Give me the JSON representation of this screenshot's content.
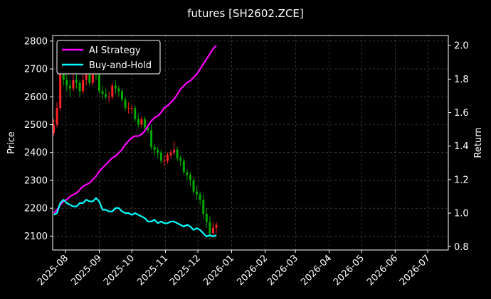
{
  "chart_data": {
    "type": "line",
    "title": "futures [SH2602.ZCE]",
    "xlabel": "",
    "ylabel": "Price",
    "y2label": "Return",
    "ylim": [
      2050,
      2820
    ],
    "y2lim": [
      0.78,
      2.06
    ],
    "yticks": [
      2100,
      2200,
      2300,
      2400,
      2500,
      2600,
      2700,
      2800
    ],
    "y2ticks": [
      0.8,
      1.0,
      1.2,
      1.4,
      1.6,
      1.8,
      2.0
    ],
    "xlim": [
      "2025-07-20",
      "2026-07-20"
    ],
    "xticks": [
      "2025-08",
      "2025-09",
      "2025-10",
      "2025-11",
      "2025-12",
      "2026-01",
      "2026-02",
      "2026-03",
      "2026-04",
      "2026-05",
      "2026-06",
      "2026-07"
    ],
    "grid": true,
    "legend": "top-left",
    "colors": {
      "background": "#000000",
      "ai_strategy": "#ff00ff",
      "buy_and_hold": "#00ffff",
      "candle_up": "#ff2222",
      "candle_down": "#00aa00",
      "grid": "#555555"
    },
    "series": [
      {
        "name": "AI Strategy",
        "axis": "right",
        "x": [
          "2025-07-21",
          "2025-07-24",
          "2025-07-27",
          "2025-07-30",
          "2025-08-02",
          "2025-08-05",
          "2025-08-08",
          "2025-08-11",
          "2025-08-14",
          "2025-08-17",
          "2025-08-20",
          "2025-08-23",
          "2025-08-26",
          "2025-08-29",
          "2025-09-01",
          "2025-09-04",
          "2025-09-07",
          "2025-09-10",
          "2025-09-13",
          "2025-09-16",
          "2025-09-19",
          "2025-09-22",
          "2025-09-25",
          "2025-09-28",
          "2025-10-01",
          "2025-10-04",
          "2025-10-07",
          "2025-10-10",
          "2025-10-13",
          "2025-10-16",
          "2025-10-19",
          "2025-10-22",
          "2025-10-25",
          "2025-10-28",
          "2025-10-31",
          "2025-11-03",
          "2025-11-06",
          "2025-11-09",
          "2025-11-12",
          "2025-11-15",
          "2025-11-18",
          "2025-11-21",
          "2025-11-24",
          "2025-11-27",
          "2025-11-30",
          "2025-12-03",
          "2025-12-06",
          "2025-12-09",
          "2025-12-12",
          "2025-12-15",
          "2025-12-18"
        ],
        "values": [
          1.0,
          1.02,
          1.05,
          1.07,
          1.08,
          1.1,
          1.11,
          1.12,
          1.14,
          1.16,
          1.17,
          1.18,
          1.2,
          1.22,
          1.25,
          1.27,
          1.29,
          1.31,
          1.33,
          1.34,
          1.36,
          1.38,
          1.41,
          1.43,
          1.45,
          1.46,
          1.46,
          1.47,
          1.49,
          1.52,
          1.55,
          1.57,
          1.58,
          1.6,
          1.63,
          1.64,
          1.66,
          1.68,
          1.71,
          1.74,
          1.76,
          1.78,
          1.79,
          1.81,
          1.83,
          1.86,
          1.89,
          1.92,
          1.95,
          1.98,
          2.0
        ]
      },
      {
        "name": "Buy-and-Hold",
        "axis": "right",
        "x": [
          "2025-07-21",
          "2025-07-24",
          "2025-07-27",
          "2025-07-30",
          "2025-08-02",
          "2025-08-05",
          "2025-08-08",
          "2025-08-11",
          "2025-08-14",
          "2025-08-17",
          "2025-08-20",
          "2025-08-23",
          "2025-08-26",
          "2025-08-29",
          "2025-09-01",
          "2025-09-04",
          "2025-09-07",
          "2025-09-10",
          "2025-09-13",
          "2025-09-16",
          "2025-09-19",
          "2025-09-22",
          "2025-09-25",
          "2025-09-28",
          "2025-10-01",
          "2025-10-04",
          "2025-10-07",
          "2025-10-10",
          "2025-10-13",
          "2025-10-16",
          "2025-10-19",
          "2025-10-22",
          "2025-10-25",
          "2025-10-28",
          "2025-10-31",
          "2025-11-03",
          "2025-11-06",
          "2025-11-09",
          "2025-11-12",
          "2025-11-15",
          "2025-11-18",
          "2025-11-21",
          "2025-11-24",
          "2025-11-27",
          "2025-11-30",
          "2025-12-03",
          "2025-12-06",
          "2025-12-09",
          "2025-12-12",
          "2025-12-15",
          "2025-12-18"
        ],
        "values": [
          0.99,
          1.0,
          1.06,
          1.08,
          1.06,
          1.05,
          1.04,
          1.04,
          1.06,
          1.06,
          1.08,
          1.07,
          1.07,
          1.09,
          1.07,
          1.02,
          1.02,
          1.01,
          1.01,
          1.03,
          1.03,
          1.01,
          1.0,
          1.0,
          0.99,
          1.0,
          0.99,
          0.98,
          0.97,
          0.95,
          0.95,
          0.96,
          0.94,
          0.95,
          0.94,
          0.94,
          0.95,
          0.95,
          0.94,
          0.93,
          0.92,
          0.93,
          0.92,
          0.9,
          0.91,
          0.9,
          0.88,
          0.86,
          0.87,
          0.86,
          0.87
        ]
      }
    ],
    "candles": {
      "axis": "left",
      "x": [
        "2025-07-21",
        "2025-07-24",
        "2025-07-27",
        "2025-07-30",
        "2025-08-02",
        "2025-08-05",
        "2025-08-08",
        "2025-08-11",
        "2025-08-14",
        "2025-08-17",
        "2025-08-20",
        "2025-08-23",
        "2025-08-26",
        "2025-08-29",
        "2025-09-01",
        "2025-09-04",
        "2025-09-07",
        "2025-09-10",
        "2025-09-13",
        "2025-09-16",
        "2025-09-19",
        "2025-09-22",
        "2025-09-25",
        "2025-09-28",
        "2025-10-01",
        "2025-10-04",
        "2025-10-07",
        "2025-10-10",
        "2025-10-13",
        "2025-10-16",
        "2025-10-19",
        "2025-10-22",
        "2025-10-25",
        "2025-10-28",
        "2025-10-31",
        "2025-11-03",
        "2025-11-06",
        "2025-11-09",
        "2025-11-12",
        "2025-11-15",
        "2025-11-18",
        "2025-11-21",
        "2025-11-24",
        "2025-11-27",
        "2025-11-30",
        "2025-12-03",
        "2025-12-06",
        "2025-12-09",
        "2025-12-12",
        "2025-12-15",
        "2025-12-18"
      ],
      "open": [
        2470,
        2500,
        2560,
        2690,
        2660,
        2640,
        2630,
        2660,
        2650,
        2620,
        2660,
        2680,
        2650,
        2700,
        2680,
        2620,
        2610,
        2600,
        2600,
        2640,
        2630,
        2620,
        2590,
        2560,
        2560,
        2560,
        2520,
        2500,
        2520,
        2490,
        2480,
        2420,
        2410,
        2400,
        2370,
        2370,
        2390,
        2400,
        2410,
        2380,
        2370,
        2330,
        2320,
        2300,
        2260,
        2250,
        2230,
        2180,
        2150,
        2110,
        2130
      ],
      "close": [
        2500,
        2560,
        2690,
        2660,
        2640,
        2630,
        2660,
        2650,
        2620,
        2660,
        2680,
        2650,
        2700,
        2680,
        2620,
        2610,
        2600,
        2600,
        2640,
        2630,
        2620,
        2590,
        2560,
        2560,
        2560,
        2520,
        2500,
        2520,
        2490,
        2480,
        2420,
        2410,
        2400,
        2370,
        2370,
        2390,
        2400,
        2410,
        2380,
        2370,
        2330,
        2320,
        2300,
        2260,
        2250,
        2230,
        2180,
        2150,
        2110,
        2130,
        2140
      ],
      "high": [
        2520,
        2580,
        2720,
        2700,
        2680,
        2660,
        2680,
        2680,
        2660,
        2680,
        2700,
        2690,
        2720,
        2710,
        2690,
        2640,
        2630,
        2620,
        2650,
        2660,
        2640,
        2630,
        2600,
        2580,
        2570,
        2570,
        2540,
        2530,
        2530,
        2500,
        2500,
        2430,
        2420,
        2410,
        2390,
        2400,
        2410,
        2440,
        2420,
        2390,
        2380,
        2340,
        2330,
        2310,
        2280,
        2260,
        2250,
        2200,
        2170,
        2150,
        2150
      ],
      "low": [
        2460,
        2490,
        2550,
        2640,
        2620,
        2600,
        2620,
        2630,
        2600,
        2610,
        2640,
        2640,
        2640,
        2660,
        2610,
        2590,
        2590,
        2580,
        2590,
        2610,
        2600,
        2580,
        2550,
        2540,
        2540,
        2510,
        2490,
        2490,
        2480,
        2470,
        2410,
        2390,
        2380,
        2360,
        2350,
        2360,
        2380,
        2390,
        2370,
        2350,
        2320,
        2300,
        2280,
        2250,
        2230,
        2210,
        2160,
        2130,
        2090,
        2100,
        2110
      ]
    }
  }
}
